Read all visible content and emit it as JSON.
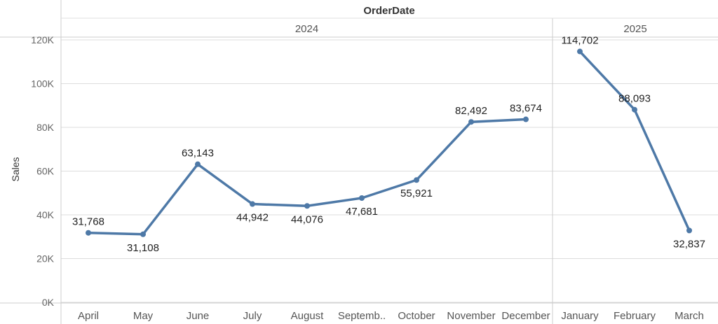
{
  "chart_data": {
    "type": "line",
    "column_header": "OrderDate",
    "ylabel": "Sales",
    "ylim": [
      0,
      120000
    ],
    "y_ticks": [
      {
        "value": 0,
        "label": "0K"
      },
      {
        "value": 20000,
        "label": "20K"
      },
      {
        "value": 40000,
        "label": "40K"
      },
      {
        "value": 60000,
        "label": "60K"
      },
      {
        "value": 80000,
        "label": "80K"
      },
      {
        "value": 100000,
        "label": "100K"
      },
      {
        "value": 120000,
        "label": "120K"
      }
    ],
    "grid": true,
    "color": "#4e79a7",
    "panes": [
      {
        "year": "2024",
        "categories": [
          "April",
          "May",
          "June",
          "July",
          "August",
          "Septemb..",
          "October",
          "November",
          "December"
        ],
        "values": [
          31768,
          31108,
          63143,
          44942,
          44076,
          47681,
          55921,
          82492,
          83674
        ],
        "labels": [
          "31,768",
          "31,108",
          "63,143",
          "44,942",
          "44,076",
          "47,681",
          "55,921",
          "82,492",
          "83,674"
        ]
      },
      {
        "year": "2025",
        "categories": [
          "January",
          "February",
          "March"
        ],
        "values": [
          114702,
          88093,
          32837
        ],
        "labels": [
          "114,702",
          "88,093",
          "32,837"
        ]
      }
    ]
  }
}
